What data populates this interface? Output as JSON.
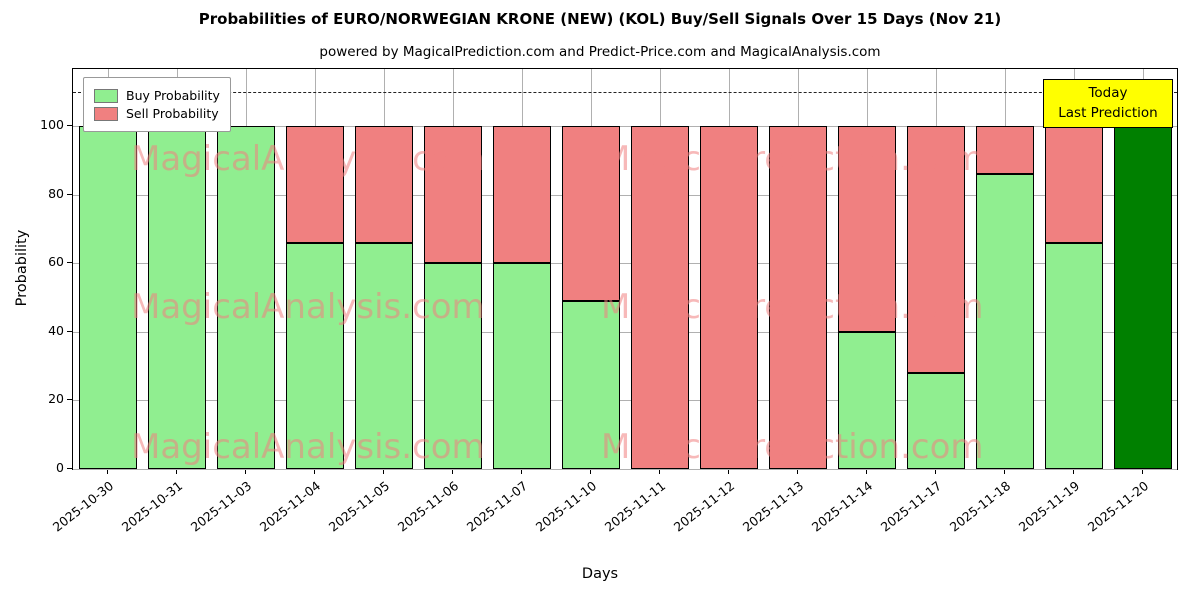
{
  "title": "Probabilities of EURO/NORWEGIAN KRONE (NEW) (KOL) Buy/Sell Signals Over 15 Days (Nov 21)",
  "subtitle": "powered by MagicalPrediction.com and Predict-Price.com and MagicalAnalysis.com",
  "chart_data": {
    "type": "bar",
    "stacked": true,
    "title": "Probabilities of EURO/NORWEGIAN KRONE (NEW) (KOL) Buy/Sell Signals Over 15 Days (Nov 21)",
    "subtitle": "powered by MagicalPrediction.com and Predict-Price.com and MagicalAnalysis.com",
    "xlabel": "Days",
    "ylabel": "Probability",
    "categories": [
      "2025-10-30",
      "2025-10-31",
      "2025-11-03",
      "2025-11-04",
      "2025-11-05",
      "2025-11-06",
      "2025-11-07",
      "2025-11-10",
      "2025-11-11",
      "2025-11-12",
      "2025-11-13",
      "2025-11-14",
      "2025-11-17",
      "2025-11-18",
      "2025-11-19",
      "2025-11-20"
    ],
    "series": [
      {
        "name": "Buy Probability",
        "color": "#90ee90",
        "values": [
          100,
          100,
          100,
          66,
          66,
          60,
          60,
          49,
          0,
          0,
          0,
          40,
          28,
          86,
          66,
          100
        ]
      },
      {
        "name": "Sell Probability",
        "color": "#f08080",
        "values": [
          0,
          0,
          0,
          34,
          34,
          40,
          40,
          51,
          100,
          100,
          100,
          60,
          72,
          14,
          34,
          0
        ]
      }
    ],
    "last_bar": {
      "index": 15,
      "color": "#008000",
      "meaning": "Today / Last Prediction"
    },
    "yticks": [
      0,
      20,
      40,
      60,
      80,
      100
    ],
    "ylim": [
      0,
      116.7
    ],
    "dashed_line_y": 110,
    "grid": true,
    "legend_position": "upper left",
    "annotation_box": {
      "lines": [
        "Today",
        "Last Prediction"
      ],
      "bg_color": "#ffff00"
    },
    "watermarks": [
      "MagicalAnalysis.com",
      "MagicalPrediction.com"
    ]
  }
}
